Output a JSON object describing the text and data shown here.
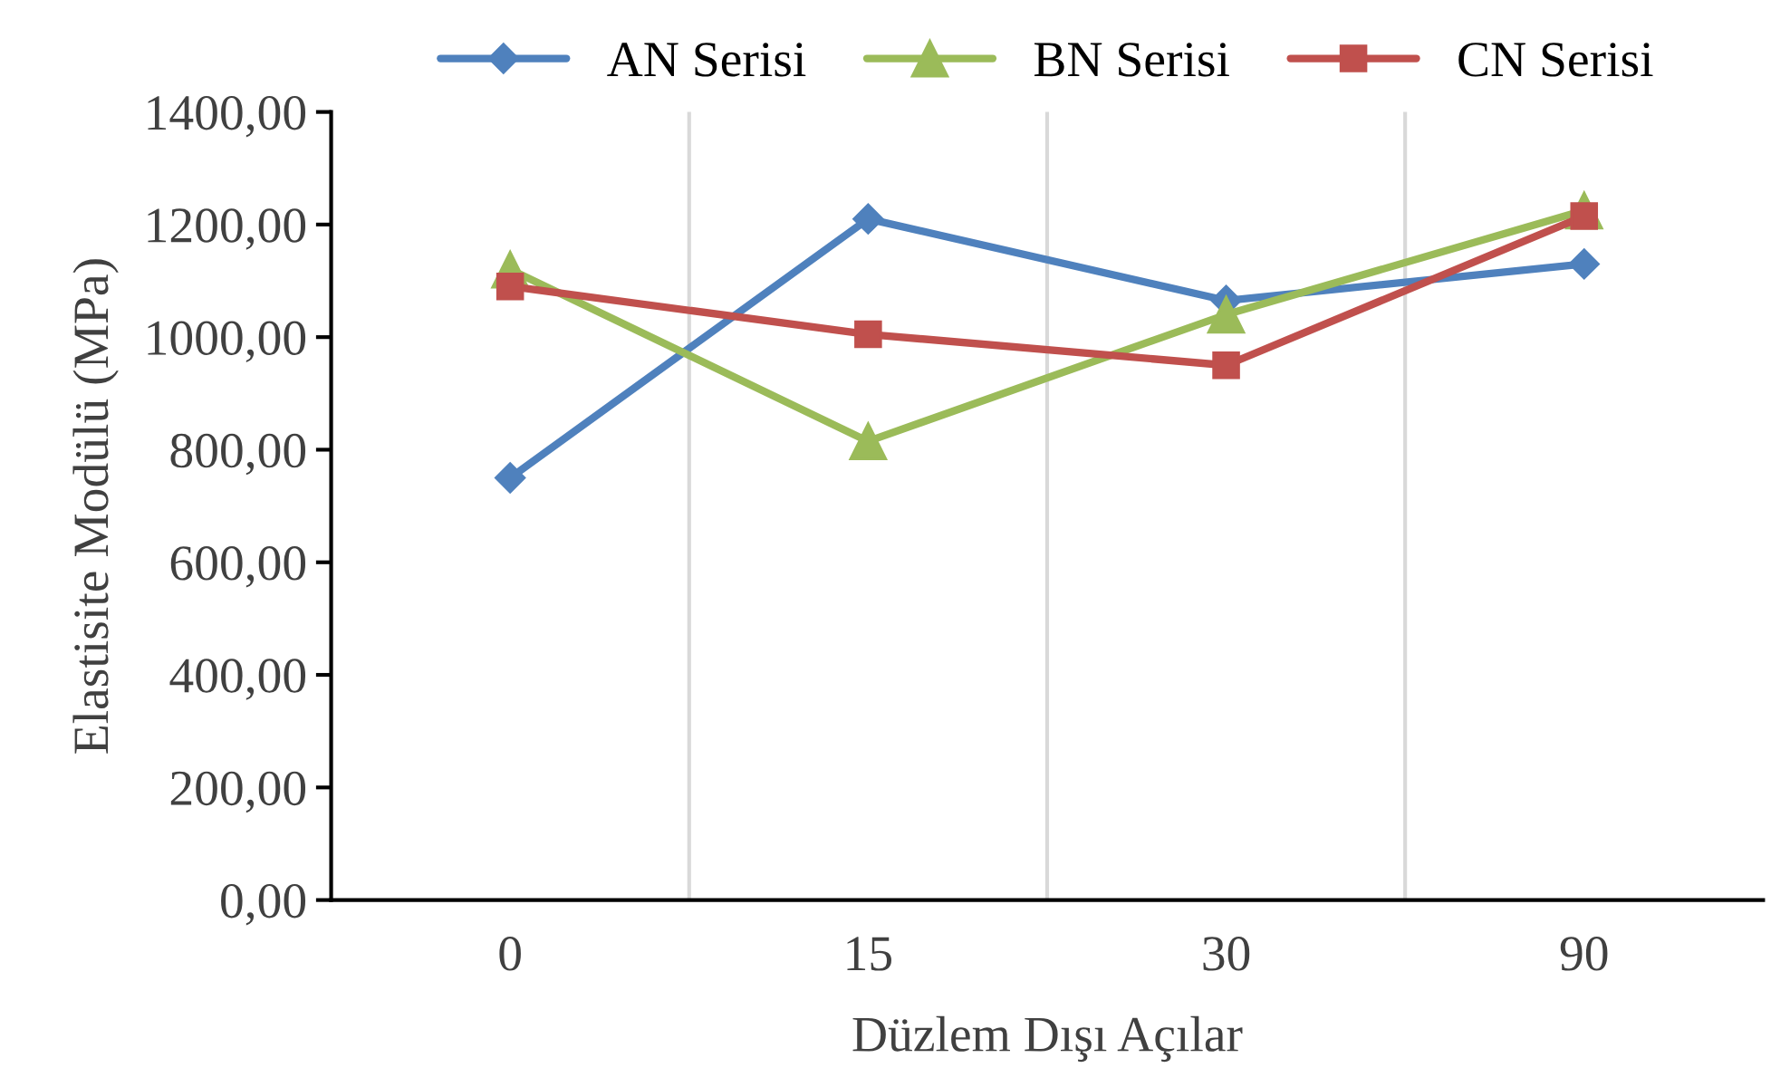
{
  "chart_data": {
    "type": "line",
    "xlabel": "Düzlem Dışı Açılar",
    "ylabel": "Elastisite Modülü (MPa)",
    "categories": [
      "0",
      "15",
      "30",
      "90"
    ],
    "series": [
      {
        "name": "AN Serisi",
        "color": "#4f81bd",
        "marker": "diamond",
        "values": [
          750,
          1210,
          1065,
          1130
        ]
      },
      {
        "name": "BN Serisi",
        "color": "#9bbb59",
        "marker": "triangle",
        "values": [
          1120,
          815,
          1040,
          1225
        ]
      },
      {
        "name": "CN Serisi",
        "color": "#c0504d",
        "marker": "square",
        "values": [
          1090,
          1005,
          950,
          1215
        ]
      }
    ],
    "ylim": [
      0,
      1400
    ],
    "yticks": [
      {
        "value": 0,
        "label": "0,00"
      },
      {
        "value": 200,
        "label": "200,00"
      },
      {
        "value": 400,
        "label": "400,00"
      },
      {
        "value": 600,
        "label": "600,00"
      },
      {
        "value": 800,
        "label": "800,00"
      },
      {
        "value": 1000,
        "label": "1000,00"
      },
      {
        "value": 1200,
        "label": "1200,00"
      },
      {
        "value": 1400,
        "label": "1400,00"
      }
    ],
    "grid": "x",
    "legend": "top",
    "line_style": "solid"
  }
}
